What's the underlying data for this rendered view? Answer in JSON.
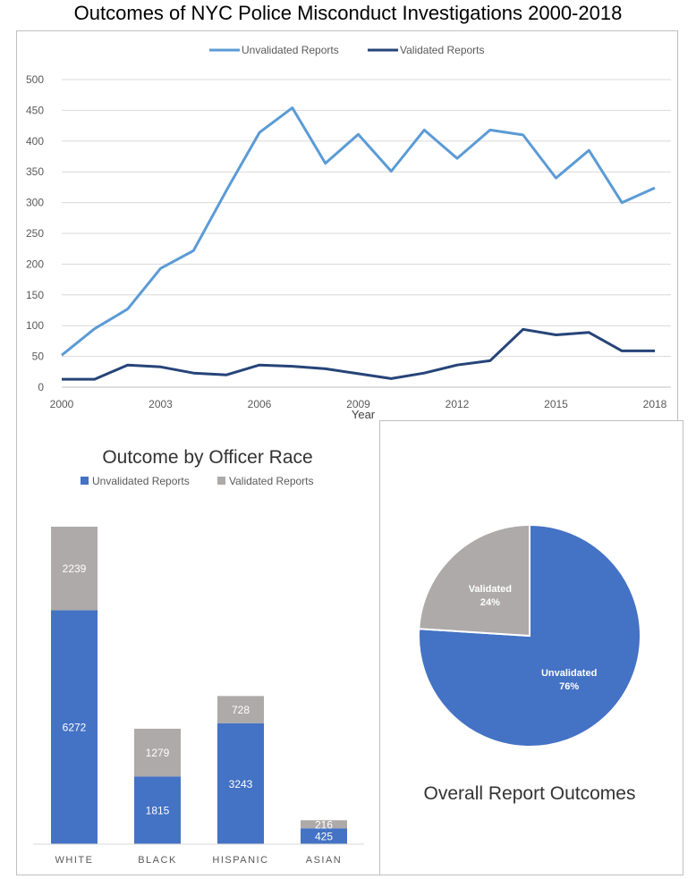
{
  "title": "Outcomes of NYC Police Misconduct Investigations 2000-2018",
  "chart_data": [
    {
      "type": "line",
      "x": [
        2000,
        2001,
        2002,
        2003,
        2004,
        2005,
        2006,
        2007,
        2008,
        2009,
        2010,
        2011,
        2012,
        2013,
        2014,
        2015,
        2016,
        2017,
        2018
      ],
      "xticks": [
        "2000",
        "2003",
        "2006",
        "2009",
        "2012",
        "2015",
        "2018"
      ],
      "xlabel": "Year",
      "ylabel": "",
      "ylim": [
        0,
        500
      ],
      "yticks": [
        "0",
        "50",
        "100",
        "150",
        "200",
        "250",
        "300",
        "350",
        "400",
        "450",
        "500"
      ],
      "grid": true,
      "legend_position": "top",
      "series": [
        {
          "name": "Unvalidated Reports",
          "color": "#5b9bd5",
          "values": [
            52,
            95,
            127,
            193,
            222,
            320,
            414,
            454,
            364,
            411,
            351,
            418,
            372,
            418,
            410,
            340,
            385,
            300,
            324
          ]
        },
        {
          "name": "Validated Reports",
          "color": "#264478",
          "values": [
            13,
            13,
            36,
            33,
            23,
            20,
            36,
            34,
            30,
            22,
            14,
            23,
            36,
            43,
            94,
            85,
            89,
            59,
            59
          ]
        }
      ]
    },
    {
      "type": "bar",
      "stacked": true,
      "title": "Outcome by Officer Race",
      "categories": [
        "WHITE",
        "BLACK",
        "HISPANIC",
        "ASIAN"
      ],
      "legend_position": "top",
      "series": [
        {
          "name": "Unvalidated Reports",
          "color": "#4472c4",
          "values": [
            6272,
            1815,
            3243,
            425
          ],
          "labels": [
            "6272",
            "1815",
            "3243",
            "425"
          ]
        },
        {
          "name": "Validated Reports",
          "color": "#aeaaaa",
          "values": [
            2239,
            1279,
            728,
            216
          ],
          "labels": [
            "2239",
            "1279",
            "728",
            "216"
          ]
        }
      ]
    },
    {
      "type": "pie",
      "title": "Overall Report Outcomes",
      "slices": [
        {
          "label": "Unvalidated",
          "pct_label": "76%",
          "value": 76,
          "color": "#4472c4"
        },
        {
          "label": "Validated",
          "pct_label": "24%",
          "value": 24,
          "color": "#aeaaaa"
        }
      ]
    }
  ]
}
